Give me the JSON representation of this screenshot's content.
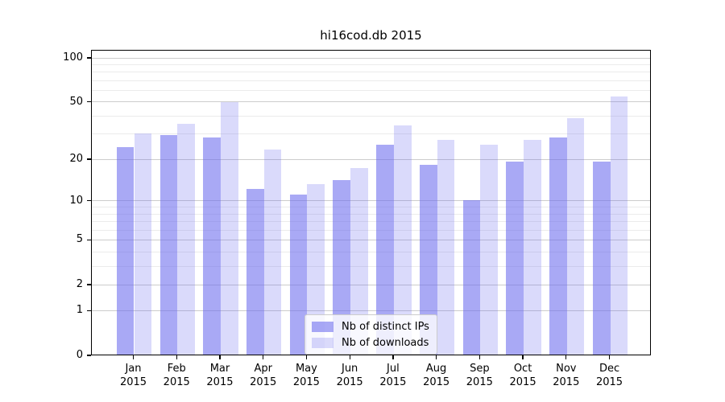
{
  "chart_data": {
    "type": "bar",
    "title": "hi16cod.db 2015",
    "categories": [
      "Jan",
      "Feb",
      "Mar",
      "Apr",
      "May",
      "Jun",
      "Jul",
      "Aug",
      "Sep",
      "Oct",
      "Nov",
      "Dec"
    ],
    "category_year": "2015",
    "series": [
      {
        "name": "Nb of distinct IPs",
        "color": "#6666ee",
        "alpha": 0.56,
        "values": [
          24,
          29,
          28,
          12,
          11,
          14,
          25,
          18,
          10,
          19,
          28,
          19
        ]
      },
      {
        "name": "Nb of downloads",
        "color": "#6666ee",
        "alpha": 0.24,
        "values": [
          30,
          35,
          49,
          23,
          13,
          17,
          34,
          27,
          25,
          27,
          38,
          54
        ]
      }
    ],
    "yscale": "log(1+x)",
    "ylim": [
      0,
      113
    ],
    "y_tick_labels": [
      "100",
      "50",
      "20",
      "10",
      "5",
      "2",
      "1",
      "0"
    ],
    "y_tick_values": [
      100,
      50,
      20,
      10,
      5,
      2,
      1,
      0
    ],
    "y_minor_gridlines": [
      3,
      4,
      6,
      7,
      8,
      9,
      30,
      40,
      60,
      70,
      80,
      90
    ],
    "grid": "on",
    "legend_position": "lower center",
    "colors": {
      "axis": "#000000",
      "major_grid": "#cccccc",
      "minor_grid": "#ebebeb",
      "bar_ips_rendered": "#a8a8f5",
      "bar_downloads_rendered": "#dcdcf8"
    }
  }
}
